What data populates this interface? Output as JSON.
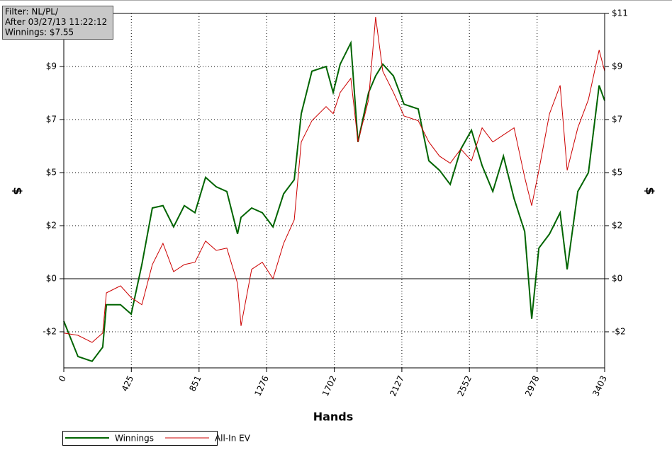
{
  "chart_data": {
    "type": "line",
    "info_lines": [
      "Filter: NL/PL/",
      "After 03/27/13 11:22:12",
      "Winnings: $7.55"
    ],
    "x_label": "Hands",
    "y_label": "$",
    "y2_label": "$",
    "x": [
      0,
      89,
      178,
      245,
      268,
      357,
      424,
      491,
      557,
      624,
      691,
      758,
      825,
      892,
      959,
      1026,
      1093,
      1115,
      1182,
      1249,
      1316,
      1383,
      1450,
      1494,
      1561,
      1650,
      1695,
      1739,
      1806,
      1851,
      1918,
      1962,
      2007,
      2074,
      2141,
      2230,
      2297,
      2364,
      2431,
      2498,
      2565,
      2632,
      2699,
      2766,
      2833,
      2900,
      2944,
      2989,
      3056,
      3123,
      3167,
      3234,
      3301,
      3368,
      3403
    ],
    "series": [
      {
        "name": "Winnings",
        "color": "#006400",
        "width": 2,
        "values": [
          -1.8,
          -3.3,
          -3.5,
          -2.9,
          -1.1,
          -1.1,
          -1.5,
          0.6,
          3.0,
          3.1,
          2.2,
          3.1,
          2.8,
          4.3,
          3.9,
          3.7,
          1.9,
          2.6,
          3.0,
          2.8,
          2.2,
          3.6,
          4.2,
          7.0,
          8.8,
          9.0,
          7.9,
          9.1,
          10.0,
          5.8,
          7.9,
          8.6,
          9.1,
          8.6,
          7.4,
          7.2,
          5.0,
          4.6,
          4.0,
          5.5,
          6.3,
          4.8,
          3.7,
          5.2,
          3.4,
          2.0,
          -1.7,
          1.3,
          1.9,
          2.8,
          0.4,
          3.7,
          4.5,
          8.2,
          7.55
        ]
      },
      {
        "name": "All-In EV",
        "color": "#cc0000",
        "width": 1,
        "values": [
          -2.3,
          -2.4,
          -2.7,
          -2.3,
          -0.6,
          -0.3,
          -0.8,
          -1.1,
          0.6,
          1.5,
          0.3,
          0.6,
          0.7,
          1.6,
          1.2,
          1.3,
          -0.2,
          -2.0,
          0.4,
          0.7,
          0.0,
          1.5,
          2.5,
          5.8,
          6.7,
          7.3,
          7.0,
          7.9,
          8.5,
          5.8,
          7.6,
          11.1,
          8.8,
          7.9,
          6.9,
          6.7,
          5.8,
          5.2,
          4.9,
          5.5,
          5.0,
          6.4,
          5.8,
          6.1,
          6.4,
          4.3,
          3.1,
          4.6,
          7.0,
          8.2,
          4.6,
          6.4,
          7.6,
          9.7,
          8.8
        ]
      }
    ],
    "xlim": [
      0,
      3403
    ],
    "xticks": [
      0,
      425,
      851,
      1276,
      1702,
      2127,
      2552,
      2978,
      3403
    ],
    "ylim": [
      -3.78,
      11.25
    ],
    "yticks": [
      {
        "value": -2.25,
        "label": "-$2"
      },
      {
        "value": 0,
        "label": "$0"
      },
      {
        "value": 2.25,
        "label": "$2"
      },
      {
        "value": 4.5,
        "label": "$5"
      },
      {
        "value": 6.75,
        "label": "$7"
      },
      {
        "value": 9,
        "label": "$9"
      },
      {
        "value": 11.25,
        "label": "$11"
      }
    ],
    "grid": true,
    "zero_line": true
  }
}
